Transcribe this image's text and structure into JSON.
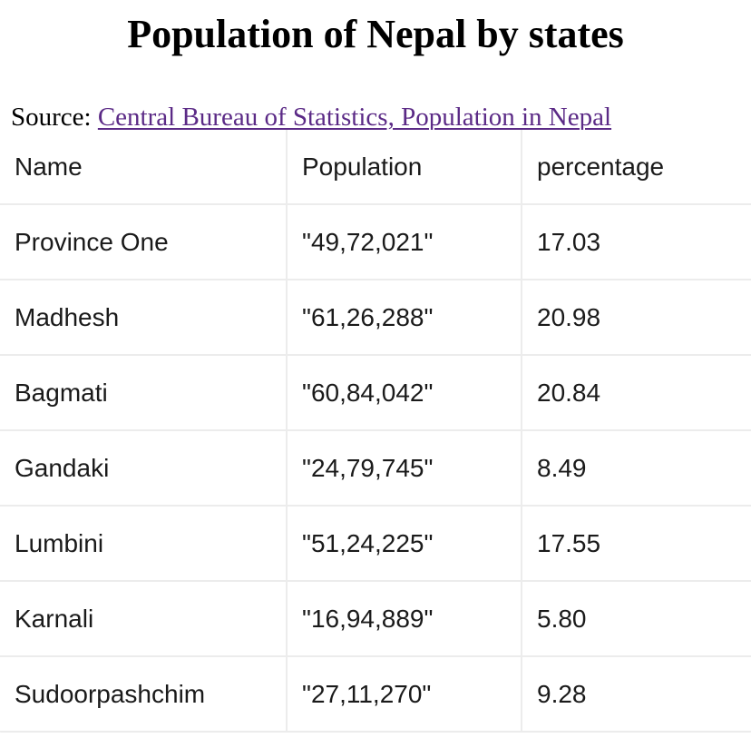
{
  "title": "Population of Nepal by states",
  "source": {
    "prefix": "Source: ",
    "link_text": "Central Bureau of Statistics, Population in Nepal"
  },
  "table": {
    "headers": [
      "Name",
      "Population",
      "percentage"
    ],
    "rows": [
      [
        "Province One",
        "\"49,72,021\"",
        "17.03"
      ],
      [
        "Madhesh",
        "\"61,26,288\"",
        "20.98"
      ],
      [
        "Bagmati",
        "\"60,84,042\"",
        "20.84"
      ],
      [
        "Gandaki",
        "\"24,79,745\"",
        "8.49"
      ],
      [
        "Lumbini",
        "\"51,24,225\"",
        "17.55"
      ],
      [
        "Karnali",
        "\"16,94,889\"",
        "5.80"
      ],
      [
        "Sudoorpashchim",
        "\"27,11,270\"",
        "9.28"
      ]
    ]
  },
  "colors": {
    "link": "#5b2a86",
    "grid": "#ececec"
  }
}
